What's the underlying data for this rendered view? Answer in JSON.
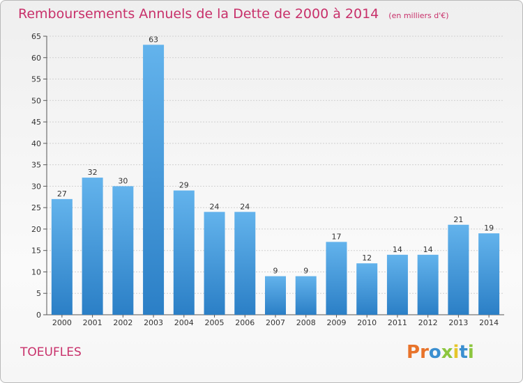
{
  "header": {
    "title": "Remboursements Annuels de la Dette de 2000 à 2014",
    "unit": "(en milliers d'€)"
  },
  "footer": {
    "commune": "TOEUFLES",
    "logo": "Proxiti"
  },
  "colors": {
    "title": "#c8306a",
    "bar_top": "#63b3ec",
    "bar_bottom": "#2b7fc6",
    "logo_letters": [
      "#e8732a",
      "#e8732a",
      "#3b8fd0",
      "#8cc63f",
      "#e6c62b",
      "#3b8fd0",
      "#8cc63f"
    ]
  },
  "chart_data": {
    "type": "bar",
    "title": "Remboursements Annuels de la Dette de 2000 à 2014",
    "subtitle": "(en milliers d'€)",
    "categories": [
      "2000",
      "2001",
      "2002",
      "2003",
      "2004",
      "2005",
      "2006",
      "2007",
      "2008",
      "2009",
      "2010",
      "2011",
      "2012",
      "2013",
      "2014"
    ],
    "values": [
      27,
      32,
      30,
      63,
      29,
      24,
      24,
      9,
      9,
      17,
      12,
      14,
      14,
      21,
      19
    ],
    "ylim": [
      0,
      65
    ],
    "yticks": [
      0,
      5,
      10,
      15,
      20,
      25,
      30,
      35,
      40,
      45,
      50,
      55,
      60,
      65
    ],
    "grid": true,
    "legend": "none"
  }
}
